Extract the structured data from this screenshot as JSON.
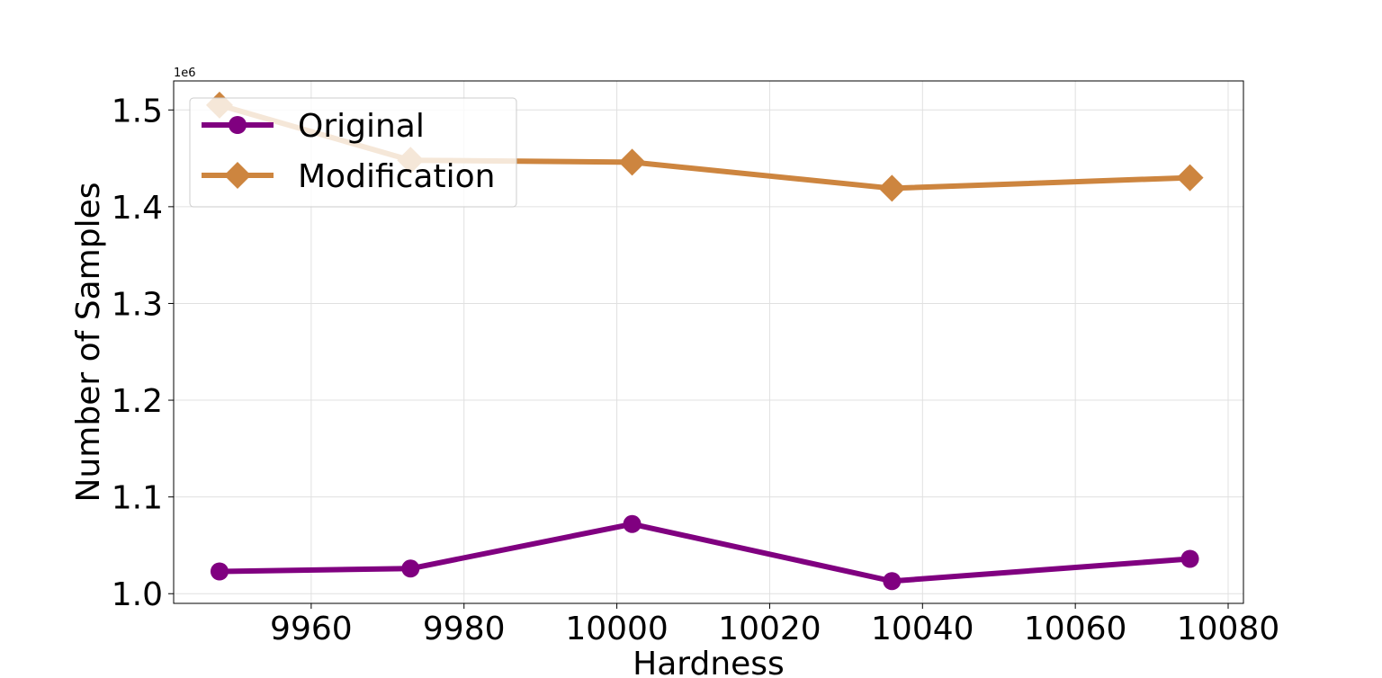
{
  "chart_data": {
    "type": "line",
    "title": "",
    "xlabel": "Hardness",
    "ylabel": "Number of Samples",
    "y_offset_label": "1e6",
    "xlim": [
      9942,
      10082
    ],
    "ylim": [
      0.99,
      1.53
    ],
    "x_ticks": [
      9960,
      9980,
      10000,
      10020,
      10040,
      10060,
      10080
    ],
    "x_tick_labels": [
      "9960",
      "9980",
      "10000",
      "10020",
      "10040",
      "10060",
      "10080"
    ],
    "y_ticks": [
      1.0,
      1.1,
      1.2,
      1.3,
      1.4,
      1.5
    ],
    "y_tick_labels": [
      "1.0",
      "1.1",
      "1.2",
      "1.3",
      "1.4",
      "1.5"
    ],
    "grid": true,
    "legend_position": "top-left",
    "series": [
      {
        "name": "Original",
        "color": "#800080",
        "marker": "circle",
        "x": [
          9948,
          9973,
          10002,
          10036,
          10075
        ],
        "y": [
          1.023,
          1.026,
          1.072,
          1.013,
          1.036
        ]
      },
      {
        "name": "Modification",
        "color": "#cd853f",
        "marker": "diamond",
        "x": [
          9948,
          9973,
          10002,
          10036,
          10075
        ],
        "y": [
          1.505,
          1.448,
          1.446,
          1.419,
          1.43
        ]
      }
    ]
  }
}
